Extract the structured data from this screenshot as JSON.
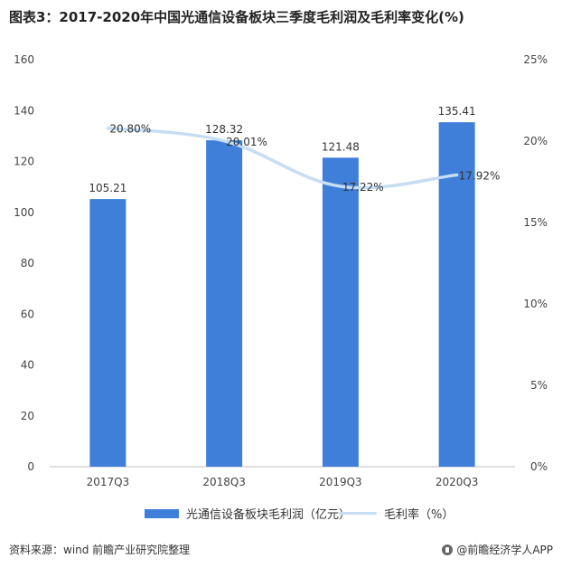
{
  "title": "图表3：2017-2020年中国光通信设备板块三季度毛利润及毛利率变化(%)",
  "source_label": "资料来源：wind 前瞻产业研究院整理",
  "brand_label": "@前瞻经济学人APP",
  "colors": {
    "bar": "#3f7fd9",
    "line": "#c6ddf3",
    "axis": "#999999",
    "text": "#444444"
  },
  "chart_data": {
    "type": "bar",
    "categories": [
      "2017Q3",
      "2018Q3",
      "2019Q3",
      "2020Q3"
    ],
    "series": [
      {
        "name": "光通信设备板块毛利润（亿元）",
        "kind": "bar",
        "axis": "left",
        "values": [
          105.21,
          128.32,
          121.48,
          135.41
        ],
        "labels": [
          "105.21",
          "128.32",
          "121.48",
          "135.41"
        ]
      },
      {
        "name": "毛利率（%）",
        "kind": "line",
        "axis": "right",
        "values": [
          20.8,
          20.01,
          17.22,
          17.92
        ],
        "labels": [
          "20.80%",
          "20.01%",
          "17.22%",
          "17.92%"
        ]
      }
    ],
    "y_left": {
      "min": 0,
      "max": 160,
      "ticks": [
        "0",
        "20",
        "40",
        "60",
        "80",
        "100",
        "120",
        "140",
        "160"
      ]
    },
    "y_right": {
      "min": 0,
      "max": 25,
      "ticks": [
        "0%",
        "5%",
        "10%",
        "15%",
        "20%",
        "25%"
      ]
    },
    "legend_position": "bottom",
    "grid": false
  }
}
